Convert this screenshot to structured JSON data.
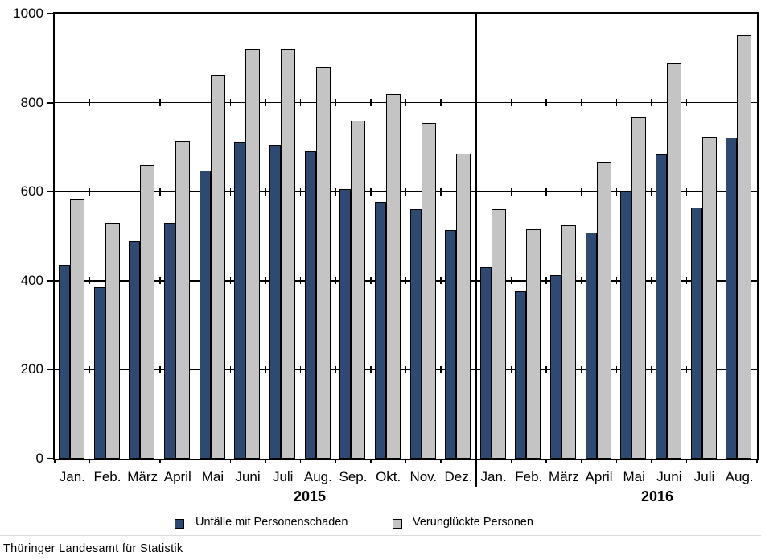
{
  "chart_data": {
    "type": "bar",
    "title": "",
    "xlabel": "",
    "ylabel": "",
    "categories": [
      "Jan.",
      "Feb.",
      "März",
      "April",
      "Mai",
      "Juni",
      "Juli",
      "Aug.",
      "Sep.",
      "Okt.",
      "Nov.",
      "Dez.",
      "Jan.",
      "Feb.",
      "März",
      "April",
      "Mai",
      "Juni",
      "Juli",
      "Aug."
    ],
    "year_groups": [
      {
        "label": "2015",
        "from_index": 0,
        "to_index": 11
      },
      {
        "label": "2016",
        "from_index": 12,
        "to_index": 19
      }
    ],
    "series": [
      {
        "name": "Unfälle mit Personenschaden",
        "color": "#2E4A73",
        "values": [
          435,
          385,
          488,
          530,
          648,
          710,
          706,
          690,
          606,
          577,
          560,
          514,
          430,
          377,
          412,
          508,
          601,
          684,
          564,
          721
        ]
      },
      {
        "name": "Verunglückte Personen",
        "color": "#C4C4C4",
        "values": [
          585,
          530,
          660,
          715,
          862,
          921,
          921,
          881,
          759,
          819,
          755,
          686,
          560,
          515,
          525,
          667,
          766,
          889,
          723,
          952
        ]
      }
    ],
    "ylim": [
      0,
      1000
    ],
    "yticks": [
      0,
      200,
      400,
      600,
      800,
      1000
    ],
    "grid": "horizontal",
    "legend_position": "bottom",
    "year_separator_after_index": 11
  },
  "legend": {
    "items": [
      {
        "label": "Unfälle mit Personenschaden",
        "swatch": "dark-blue-square"
      },
      {
        "label": "Verunglückte Personen",
        "swatch": "light-gray-square"
      }
    ]
  },
  "footer": {
    "source": "Thüringer Landesamt für Statistik"
  },
  "colors": {
    "bar_primary": "#2E4A73",
    "bar_secondary": "#C4C4C4",
    "axis": "#000000",
    "faint_rule": "#DCDCDC"
  }
}
